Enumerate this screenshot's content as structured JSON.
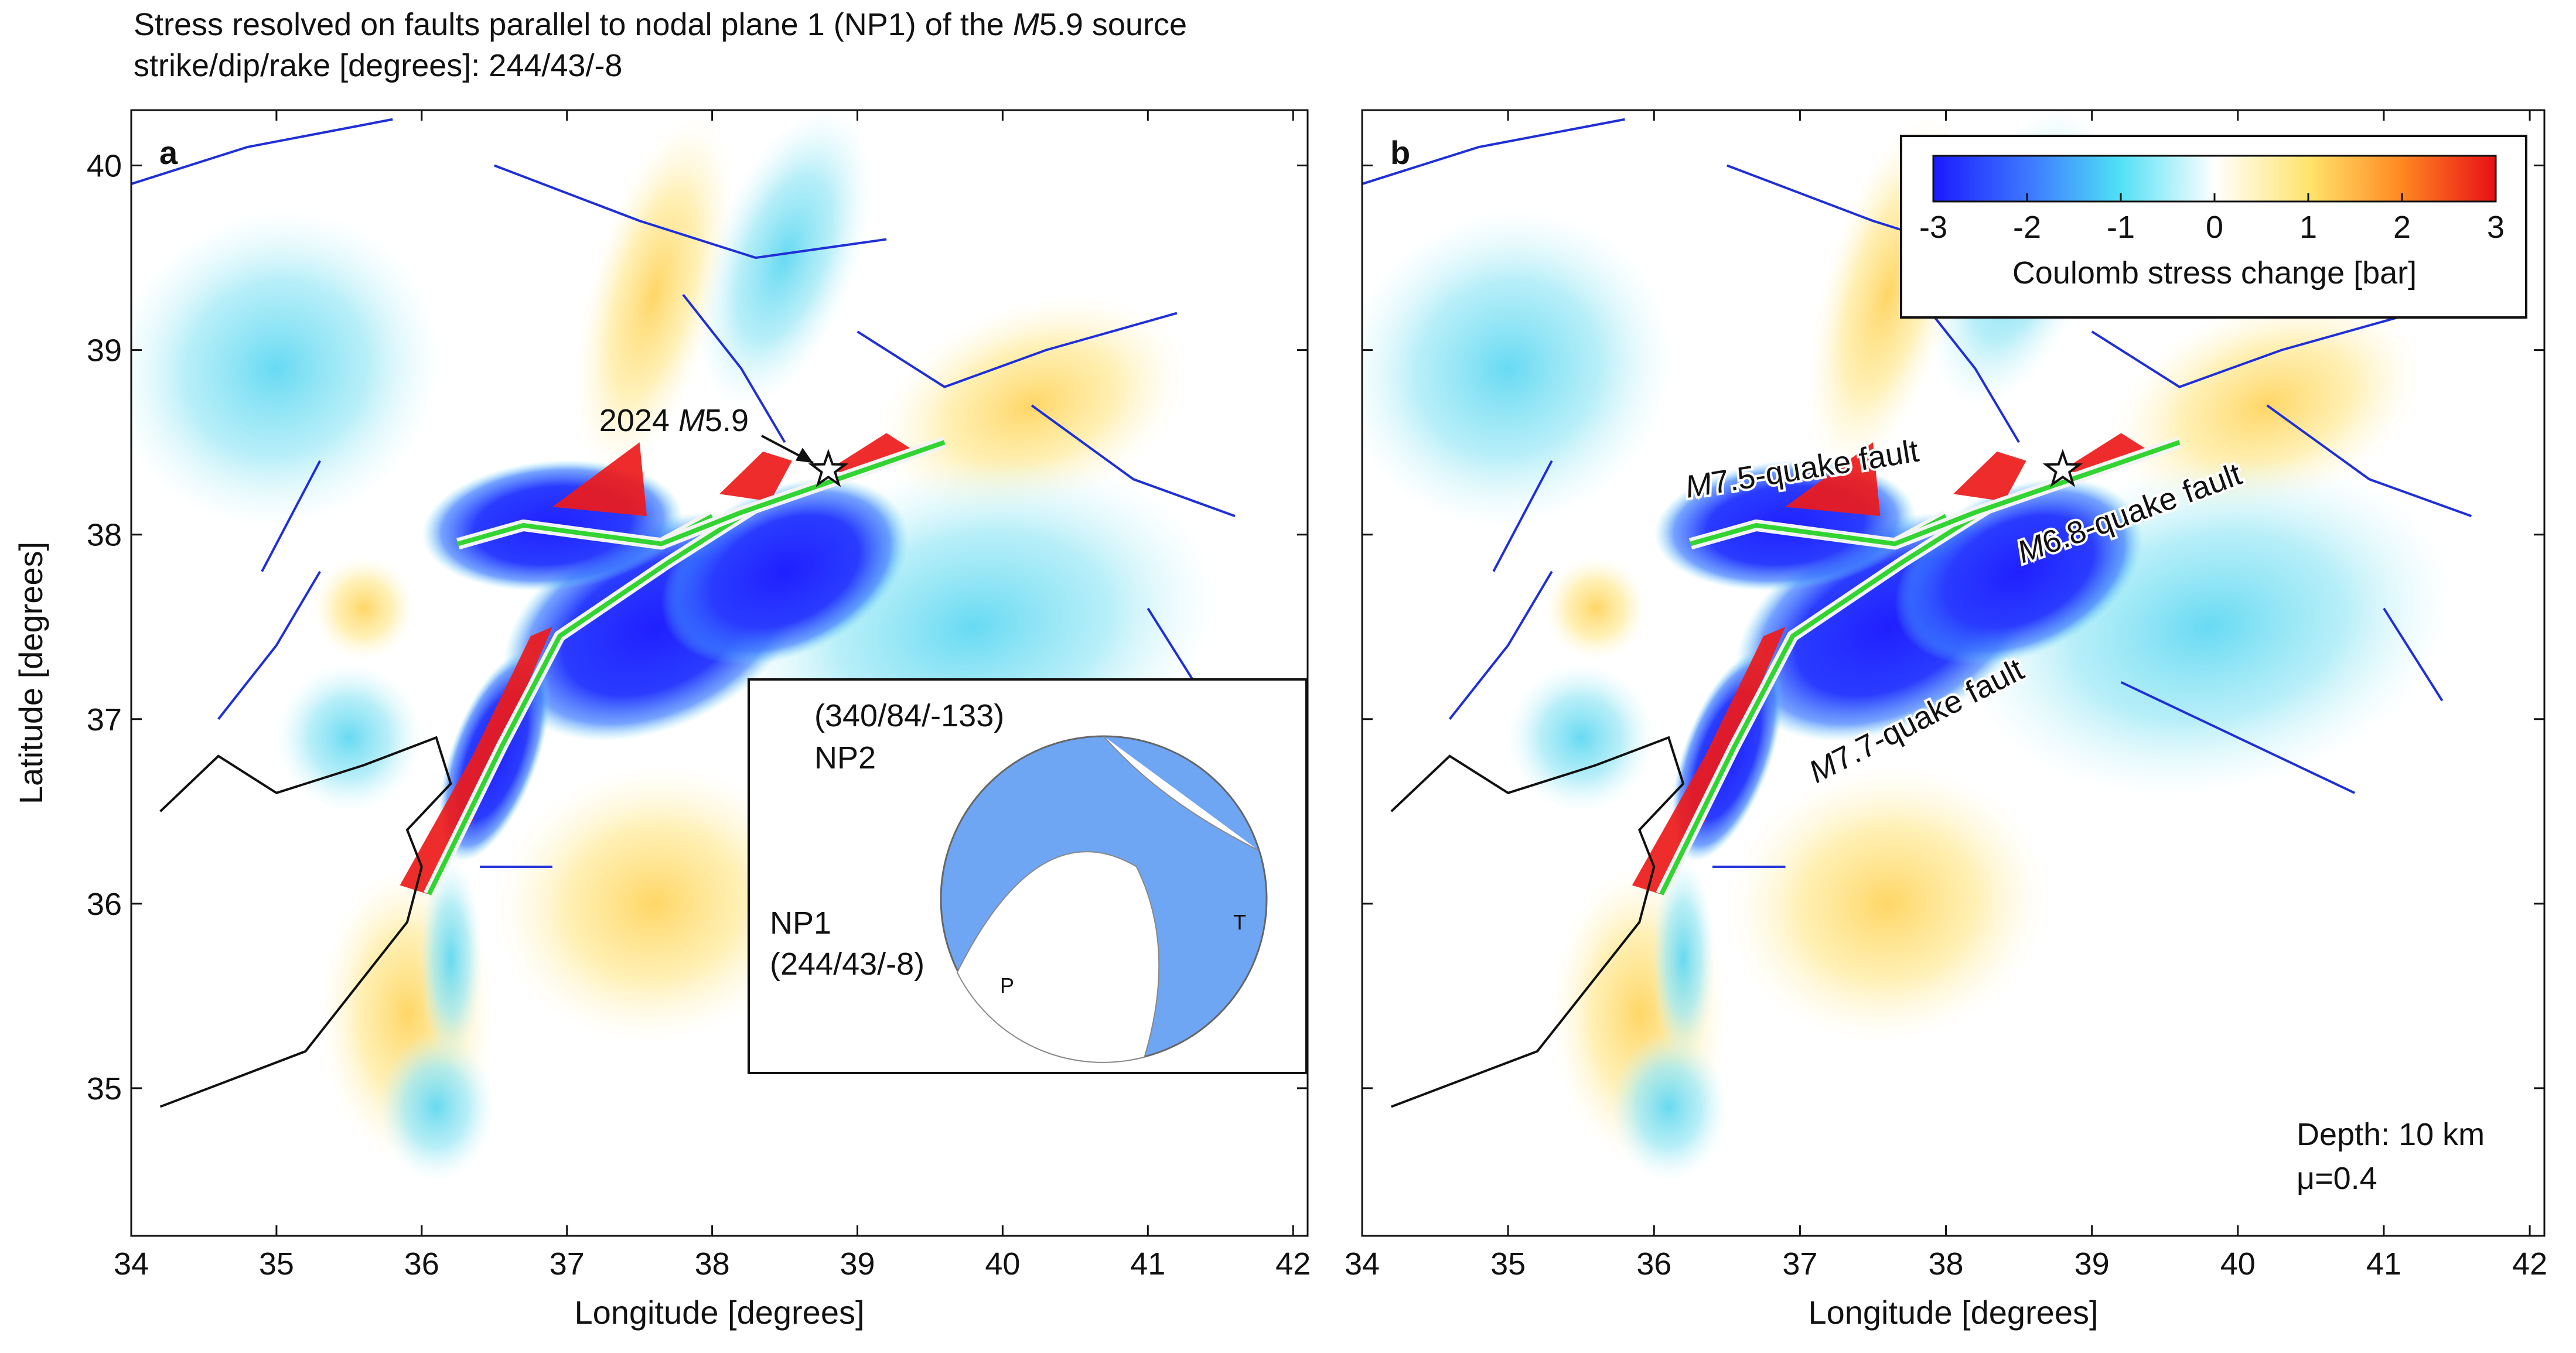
{
  "title": {
    "line1_pre": "Stress resolved on faults parallel to nodal plane 1 (NP1) of the ",
    "line1_mag_italic": "M",
    "line1_post": "5.9 source",
    "line2": "strike/dip/rake [degrees]: 244/43/-8"
  },
  "axes": {
    "xlabel": "Longitude [degrees]",
    "ylabel": "Latitude [degrees]",
    "xticks": [
      "34",
      "35",
      "36",
      "37",
      "38",
      "39",
      "40",
      "41",
      "42"
    ],
    "yticks": [
      "35",
      "36",
      "37",
      "38",
      "39",
      "40"
    ],
    "xlim": [
      34,
      42.1
    ],
    "ylim": [
      34.2,
      40.3
    ]
  },
  "panels": {
    "a": {
      "label": "a",
      "epicenter_label_pre": "2024 ",
      "epicenter_label_mag": "M",
      "epicenter_label_post": "5.9",
      "inset": {
        "np2_label_values": "(340/84/-133)",
        "np2_label": "NP2",
        "np1_label": "NP1",
        "np1_label_values": "(244/43/-8)",
        "p_label": "P",
        "t_label": "T"
      }
    },
    "b": {
      "label": "b",
      "fault_labels": [
        {
          "mag": "M",
          "text": "7.5-quake fault"
        },
        {
          "mag": "M",
          "text": "6.8-quake fault"
        },
        {
          "mag": "M",
          "text": "7.7-quake fault"
        }
      ],
      "colorbar": {
        "ticks": [
          "-3",
          "-2",
          "-1",
          "0",
          "1",
          "2",
          "3"
        ],
        "label": "Coulomb stress change [bar]",
        "range": [
          -3,
          3
        ]
      },
      "depth_label": "Depth: 10 km",
      "friction_label": "μ=0.4"
    }
  },
  "colors": {
    "negative_strong": "#2b2bff",
    "negative_weak": "#bdf4fb",
    "zero": "#ffffff",
    "positive_weak": "#fff6c0",
    "positive_strong": "#ee1a1a",
    "mapped_faults": "#1f2fd8",
    "rupture_trace": "#32d432",
    "beachball_fill": "#6fa6f4"
  },
  "chart_data": {
    "type": "heatmap",
    "quantity": "Coulomb stress change",
    "unit": "bar",
    "color_range": [
      -3,
      3
    ],
    "depth_km": 10,
    "friction_coefficient": 0.4,
    "receiver_fault_strike_dip_rake": [
      244,
      43,
      -8
    ],
    "epicenter_2024_M5_9": {
      "lon": 38.8,
      "lat": 38.35
    },
    "nodal_planes": {
      "NP1": [
        244,
        43,
        -8
      ],
      "NP2": [
        340,
        84,
        -133
      ]
    },
    "source_faults": [
      {
        "name": "M7.7-quake fault",
        "trace": [
          [
            36.05,
            36.05
          ],
          [
            36.55,
            36.85
          ],
          [
            36.95,
            37.45
          ],
          [
            37.7,
            37.85
          ],
          [
            38.3,
            38.15
          ]
        ]
      },
      {
        "name": "M7.5-quake fault",
        "trace": [
          [
            36.25,
            37.95
          ],
          [
            36.7,
            38.05
          ],
          [
            37.65,
            37.95
          ],
          [
            38.0,
            38.1
          ]
        ]
      },
      {
        "name": "M6.8-quake fault",
        "trace": [
          [
            37.65,
            37.95
          ],
          [
            38.2,
            38.12
          ],
          [
            39.6,
            38.5
          ]
        ]
      }
    ]
  }
}
